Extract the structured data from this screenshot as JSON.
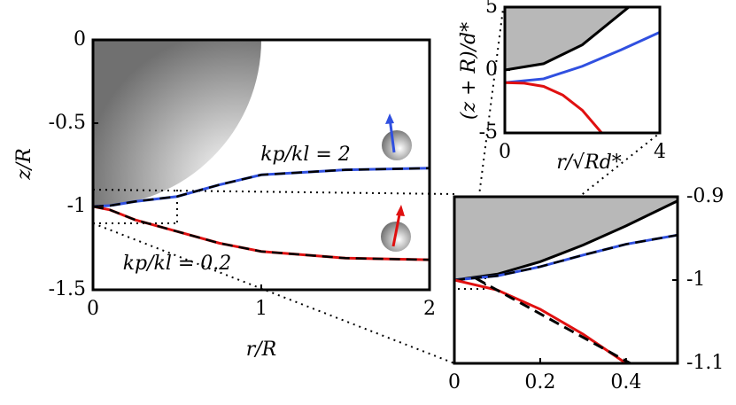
{
  "chart_data": [
    {
      "type": "line",
      "xlabel": "r/R",
      "ylabel": "z/R",
      "xlim": [
        0,
        2
      ],
      "ylim": [
        -1.5,
        0
      ],
      "xticks": [
        0,
        1,
        2
      ],
      "yticks": [
        0,
        -0.5,
        -1,
        -1.5
      ],
      "annotations": [
        "kp/kl = 2",
        "kp/kl = 0.2"
      ],
      "series": [
        {
          "color": "#3050e0",
          "dash_color": "#000000",
          "x": [
            0,
            0.1,
            0.25,
            0.5,
            0.75,
            1,
            1.5,
            2
          ],
          "values": [
            -1,
            -0.995,
            -0.97,
            -0.94,
            -0.87,
            -0.81,
            -0.78,
            -0.77
          ]
        },
        {
          "color": "#e01010",
          "dash_color": "#000000",
          "x": [
            0,
            0.1,
            0.25,
            0.5,
            0.75,
            1,
            1.5,
            2
          ],
          "values": [
            -1,
            -1.02,
            -1.08,
            -1.15,
            -1.22,
            -1.27,
            -1.31,
            -1.32
          ]
        }
      ]
    },
    {
      "type": "line",
      "xlim": [
        0,
        0.52
      ],
      "ylim": [
        -1.1,
        -0.9
      ],
      "xticks": [
        0,
        0.2,
        0.4
      ],
      "yticks": [
        -0.9,
        -1,
        -1.1
      ],
      "ytick_side": "right",
      "series": [
        {
          "color": "#000000",
          "fill_above": "#b8b8b8",
          "x": [
            0,
            0.1,
            0.2,
            0.3,
            0.4,
            0.52
          ],
          "values": [
            -1,
            -0.993,
            -0.978,
            -0.958,
            -0.935,
            -0.905
          ]
        },
        {
          "color": "#3050e0",
          "dash_color": "#000000",
          "x": [
            0,
            0.1,
            0.2,
            0.3,
            0.4,
            0.52
          ],
          "values": [
            -1,
            -0.995,
            -0.984,
            -0.97,
            -0.957,
            -0.946
          ]
        },
        {
          "color": "#e01010",
          "x": [
            0,
            0.1,
            0.2,
            0.3,
            0.4
          ],
          "values": [
            -1,
            -1.012,
            -1.035,
            -1.065,
            -1.1
          ]
        },
        {
          "color": "#000000",
          "dashed": true,
          "x": [
            0.05,
            0.41
          ],
          "values": [
            -0.998,
            -1.1
          ]
        }
      ]
    },
    {
      "type": "line",
      "xlabel": "r/√Rd*",
      "ylabel": "(z + R)/d*",
      "xlim": [
        0,
        4
      ],
      "ylim": [
        -5,
        5
      ],
      "xticks": [
        0,
        4
      ],
      "yticks": [
        5,
        0,
        -5
      ],
      "series": [
        {
          "color": "#000000",
          "fill_above": "#b8b8b8",
          "x": [
            0,
            1,
            2,
            3,
            3.2
          ],
          "values": [
            0,
            0.5,
            2,
            4.5,
            5
          ]
        },
        {
          "color": "#3050e0",
          "x": [
            0,
            1,
            2,
            3,
            4
          ],
          "values": [
            -1,
            -0.7,
            0.3,
            1.6,
            3.0
          ]
        },
        {
          "color": "#e01010",
          "x": [
            0,
            0.5,
            1,
            1.5,
            2,
            2.5
          ],
          "values": [
            -1,
            -1.05,
            -1.3,
            -2,
            -3.2,
            -5
          ]
        }
      ]
    }
  ]
}
